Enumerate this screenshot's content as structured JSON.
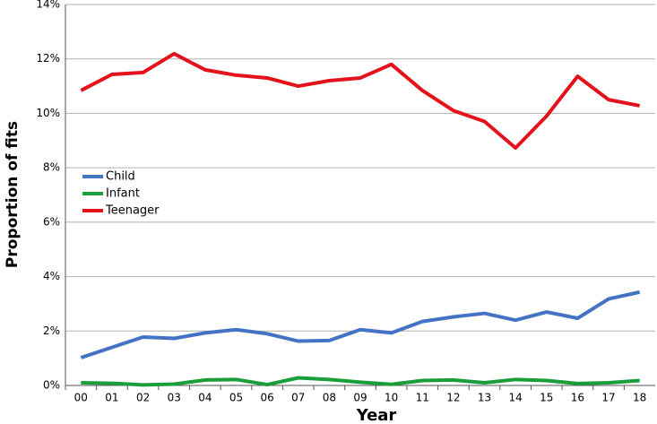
{
  "chart_data": {
    "type": "line",
    "x_label": "Year",
    "y_label": "Proportion of fits",
    "categories": [
      "00",
      "01",
      "02",
      "03",
      "04",
      "05",
      "06",
      "07",
      "08",
      "09",
      "10",
      "11",
      "12",
      "13",
      "14",
      "15",
      "16",
      "17",
      "18"
    ],
    "series": [
      {
        "name": "Child",
        "color": "#4472c4",
        "values": [
          1.02,
          1.4,
          1.78,
          1.73,
          1.93,
          2.05,
          1.9,
          1.63,
          1.65,
          2.05,
          1.93,
          2.35,
          2.52,
          2.65,
          2.4,
          2.7,
          2.47,
          3.18,
          3.43
        ]
      },
      {
        "name": "Infant",
        "color": "#1a9e3a",
        "values": [
          0.1,
          0.08,
          0.02,
          0.05,
          0.2,
          0.22,
          0.03,
          0.28,
          0.22,
          0.12,
          0.04,
          0.18,
          0.2,
          0.1,
          0.22,
          0.18,
          0.07,
          0.1,
          0.18
        ]
      },
      {
        "name": "Teenager",
        "color": "#e3121b",
        "values": [
          10.84,
          11.43,
          11.5,
          12.19,
          11.6,
          11.4,
          11.3,
          11.0,
          11.2,
          11.3,
          11.8,
          10.84,
          10.1,
          9.7,
          8.73,
          9.9,
          11.36,
          10.5,
          10.28
        ]
      }
    ],
    "ylim": [
      0,
      14
    ],
    "yticks": [
      {
        "value": 0,
        "label": "0%"
      },
      {
        "value": 2,
        "label": "2%"
      },
      {
        "value": 4,
        "label": "4%"
      },
      {
        "value": 6,
        "label": "6%"
      },
      {
        "value": 8,
        "label": "8%"
      },
      {
        "value": 10,
        "label": "10%"
      },
      {
        "value": 12,
        "label": "12%"
      },
      {
        "value": 14,
        "label": "14%"
      }
    ],
    "grid": true,
    "legend": "left"
  }
}
